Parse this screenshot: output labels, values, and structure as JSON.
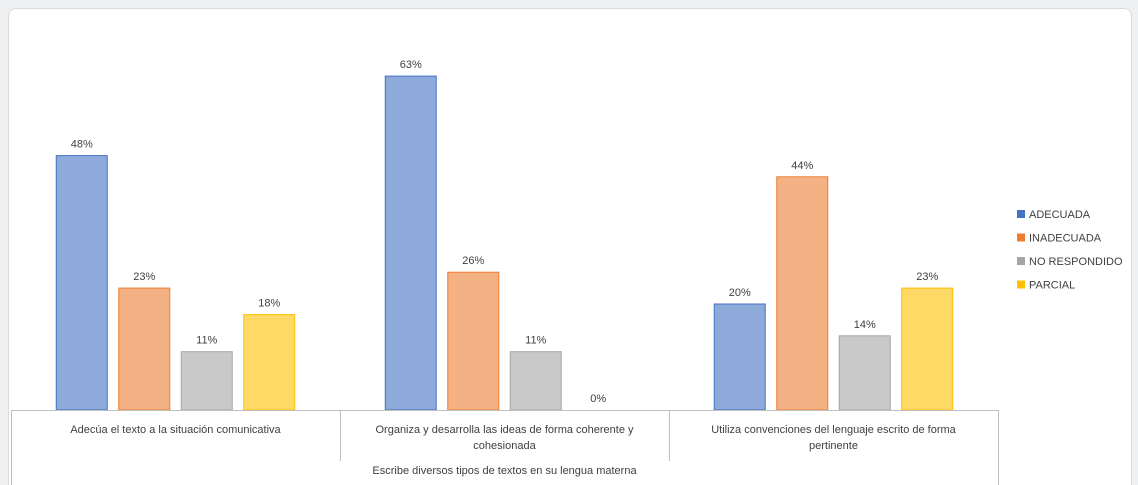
{
  "chart_data": {
    "type": "bar",
    "title": "",
    "group_label": "Escribe diversos tipos de textos en su lengua materna",
    "categories": [
      [
        "Adecúa el texto a la situación comunicativa"
      ],
      [
        "Organiza y desarrolla las ideas de forma coherente y",
        "cohesionada"
      ],
      [
        "Utiliza convenciones del lenguaje escrito de forma",
        "pertinente"
      ]
    ],
    "series": [
      {
        "name": "ADECUADA",
        "color": "#8eaadb",
        "legend_color": "#4472c4",
        "values": [
          48,
          63,
          20
        ]
      },
      {
        "name": "INADECUADA",
        "color": "#f4b183",
        "legend_color": "#ed7d31",
        "values": [
          23,
          26,
          44
        ]
      },
      {
        "name": "NO RESPONDIDO",
        "color": "#c9c9c9",
        "legend_color": "#a5a5a5",
        "values": [
          11,
          11,
          14
        ]
      },
      {
        "name": "PARCIAL",
        "color": "#ffd966",
        "legend_color": "#ffc000",
        "values": [
          18,
          0,
          23
        ]
      }
    ],
    "value_suffix": "%",
    "ylim": [
      0,
      70
    ],
    "legend_position": "right",
    "grid": false
  }
}
